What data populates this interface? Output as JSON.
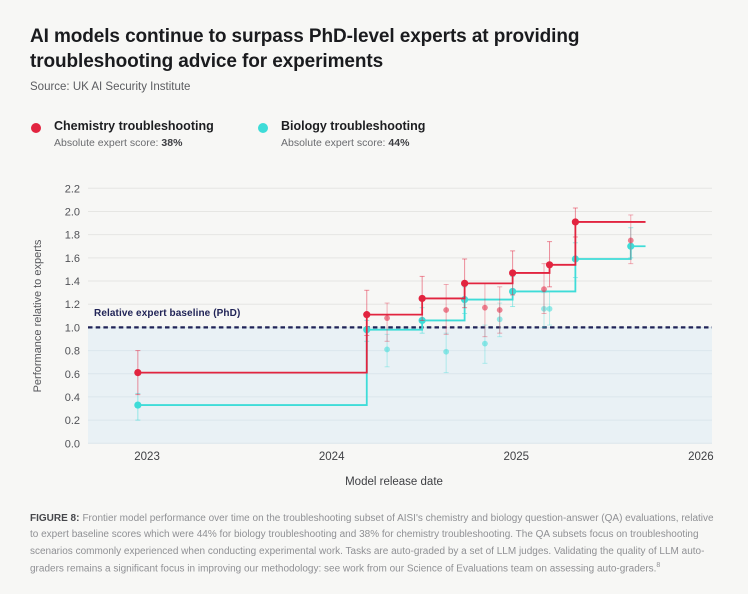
{
  "header": {
    "title": "AI models continue to surpass PhD-level experts at providing troubleshooting advice for experiments",
    "source": "Source: UK AI Security Institute"
  },
  "legend": {
    "items": [
      {
        "label": "Chemistry troubleshooting",
        "score_prefix": "Absolute expert score: ",
        "score": "38%"
      },
      {
        "label": "Biology troubleshooting",
        "score_prefix": "Absolute expert score: ",
        "score": "44%"
      }
    ]
  },
  "chart_data": {
    "type": "line",
    "subtype": "step-frontier-with-scatter-and-error-bars",
    "title": "AI models continue to surpass PhD-level experts at providing troubleshooting advice for experiments",
    "xlabel": "Model release date",
    "ylabel": "Performance relative to experts",
    "xlim": [
      2022.68,
      2026.06
    ],
    "ylim": [
      0,
      2.2
    ],
    "xticks": [
      2023,
      2024,
      2025,
      2026
    ],
    "yticks": [
      0,
      0.2,
      0.4,
      0.6,
      0.8,
      1.0,
      1.2,
      1.4,
      1.6,
      1.8,
      2.0,
      2.2
    ],
    "grid": true,
    "legend_position": "top-left",
    "baseline": {
      "value": 1.0,
      "label": "Relative expert baseline (PhD)",
      "color": "#212457",
      "shade_below_color": "#e9f1f5"
    },
    "frontier_line_end_x": 2025.7,
    "series": [
      {
        "name": "Chemistry troubleshooting",
        "expert_score": "38%",
        "color": "#e2243f",
        "frontier": [
          {
            "x": 2022.95,
            "y": 0.61,
            "lo": 0.42,
            "hi": 0.8
          },
          {
            "x": 2024.19,
            "y": 1.11,
            "lo": 0.93,
            "hi": 1.32
          },
          {
            "x": 2024.49,
            "y": 1.25,
            "lo": 1.06,
            "hi": 1.44
          },
          {
            "x": 2024.72,
            "y": 1.38,
            "lo": 1.17,
            "hi": 1.59
          },
          {
            "x": 2024.98,
            "y": 1.47,
            "lo": 1.28,
            "hi": 1.66
          },
          {
            "x": 2025.18,
            "y": 1.54,
            "lo": 1.35,
            "hi": 1.74
          },
          {
            "x": 2025.32,
            "y": 1.91,
            "lo": 1.78,
            "hi": 2.03
          }
        ],
        "other_models": [
          {
            "x": 2024.3,
            "y": 1.08,
            "lo": 0.88,
            "hi": 1.21
          },
          {
            "x": 2024.62,
            "y": 1.15,
            "lo": 0.94,
            "hi": 1.37
          },
          {
            "x": 2024.83,
            "y": 1.17,
            "lo": 0.92,
            "hi": 1.38
          },
          {
            "x": 2024.91,
            "y": 1.15,
            "lo": 0.95,
            "hi": 1.35
          },
          {
            "x": 2025.15,
            "y": 1.33,
            "lo": 1.12,
            "hi": 1.55
          },
          {
            "x": 2025.62,
            "y": 1.75,
            "lo": 1.55,
            "hi": 1.97
          }
        ]
      },
      {
        "name": "Biology troubleshooting",
        "expert_score": "44%",
        "color": "#3edcd8",
        "frontier": [
          {
            "x": 2022.95,
            "y": 0.33,
            "lo": 0.2,
            "hi": 0.43
          },
          {
            "x": 2024.19,
            "y": 0.98,
            "lo": 0.88,
            "hi": 1.06
          },
          {
            "x": 2024.49,
            "y": 1.06,
            "lo": 0.95,
            "hi": 1.17
          },
          {
            "x": 2024.72,
            "y": 1.24,
            "lo": 1.12,
            "hi": 1.35
          },
          {
            "x": 2024.98,
            "y": 1.31,
            "lo": 1.18,
            "hi": 1.44
          },
          {
            "x": 2025.32,
            "y": 1.59,
            "lo": 1.43,
            "hi": 1.73
          },
          {
            "x": 2025.62,
            "y": 1.7,
            "lo": 1.6,
            "hi": 1.86
          }
        ],
        "other_models": [
          {
            "x": 2024.3,
            "y": 0.81,
            "lo": 0.66,
            "hi": 0.94
          },
          {
            "x": 2024.62,
            "y": 0.79,
            "lo": 0.61,
            "hi": 0.95
          },
          {
            "x": 2024.83,
            "y": 0.86,
            "lo": 0.69,
            "hi": 1.02
          },
          {
            "x": 2024.91,
            "y": 1.07,
            "lo": 0.92,
            "hi": 1.21
          },
          {
            "x": 2025.15,
            "y": 1.16,
            "lo": 1.0,
            "hi": 1.3
          },
          {
            "x": 2025.18,
            "y": 1.16,
            "lo": 1.02,
            "hi": 1.31
          }
        ]
      }
    ]
  },
  "caption": {
    "tag": "FIGURE 8:",
    "text": "Frontier model performance over time on the troubleshooting subset of AISI's chemistry and biology question-answer (QA) evaluations, relative to expert baseline scores which were 44% for biology troubleshooting and 38% for chemistry troubleshooting. The QA subsets focus on troubleshooting scenarios commonly experienced when conducting experimental work. Tasks are auto-graded by a set of LLM judges. Validating the quality of LLM auto-graders remains a significant focus in improving our methodology: see work from our Science of Evaluations team on assessing auto-graders.",
    "superscript": "8"
  }
}
